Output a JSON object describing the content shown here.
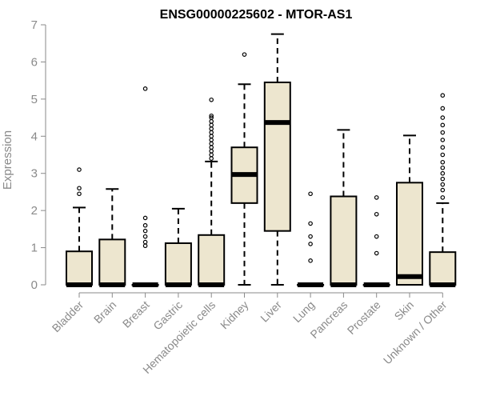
{
  "chart_data": {
    "type": "boxplot",
    "title": "ENSG00000225602 - MTOR-AS1",
    "xlabel": "",
    "ylabel": "Expression",
    "ylim": [
      0,
      7
    ],
    "yticks": [
      0,
      1,
      2,
      3,
      4,
      5,
      6,
      7
    ],
    "grid": false,
    "colors": {
      "box_fill": "#ede6cf",
      "stroke": "#000000",
      "axis": "#8a8a8a"
    },
    "categories": [
      "Bladder",
      "Brain",
      "Breast",
      "Gastric",
      "Hematopoietic cells",
      "Kidney",
      "Liver",
      "Lung",
      "Pancreas",
      "Prostate",
      "Skin",
      "Unknown / Other"
    ],
    "boxes": [
      {
        "category": "Bladder",
        "whisker_low": 0,
        "q1": 0,
        "median": 0,
        "q3": 0.9,
        "whisker_high": 2.08,
        "outliers": [
          2.45,
          2.6,
          3.1
        ]
      },
      {
        "category": "Brain",
        "whisker_low": 0,
        "q1": 0,
        "median": 0,
        "q3": 1.22,
        "whisker_high": 2.58,
        "outliers": []
      },
      {
        "category": "Breast",
        "whisker_low": 0,
        "q1": 0,
        "median": 0,
        "q3": 0,
        "whisker_high": 0,
        "outliers": [
          1.05,
          1.15,
          1.3,
          1.45,
          1.6,
          1.8,
          5.28
        ]
      },
      {
        "category": "Gastric",
        "whisker_low": 0,
        "q1": 0,
        "median": 0,
        "q3": 1.12,
        "whisker_high": 2.05,
        "outliers": []
      },
      {
        "category": "Hematopoietic cells",
        "whisker_low": 0,
        "q1": 0,
        "median": 0,
        "q3": 1.34,
        "whisker_high": 3.32,
        "outliers": [
          3.4,
          3.5,
          3.6,
          3.7,
          3.8,
          3.9,
          4.0,
          4.1,
          4.2,
          4.3,
          4.4,
          4.5,
          4.55,
          4.98
        ]
      },
      {
        "category": "Kidney",
        "whisker_low": 0,
        "q1": 2.2,
        "median": 2.97,
        "q3": 3.7,
        "whisker_high": 5.4,
        "outliers": [
          6.2
        ]
      },
      {
        "category": "Liver",
        "whisker_low": 0,
        "q1": 1.45,
        "median": 4.37,
        "q3": 5.45,
        "whisker_high": 6.75,
        "outliers": []
      },
      {
        "category": "Lung",
        "whisker_low": 0,
        "q1": 0,
        "median": 0,
        "q3": 0,
        "whisker_high": 0,
        "outliers": [
          0.65,
          1.1,
          1.3,
          1.65,
          2.45
        ]
      },
      {
        "category": "Pancreas",
        "whisker_low": 0,
        "q1": 0,
        "median": 0,
        "q3": 2.38,
        "whisker_high": 4.17,
        "outliers": []
      },
      {
        "category": "Prostate",
        "whisker_low": 0,
        "q1": 0,
        "median": 0,
        "q3": 0,
        "whisker_high": 0,
        "outliers": [
          0.85,
          1.3,
          1.9,
          2.35
        ]
      },
      {
        "category": "Skin",
        "whisker_low": 0,
        "q1": 0,
        "median": 0.22,
        "q3": 2.75,
        "whisker_high": 4.02,
        "outliers": []
      },
      {
        "category": "Unknown / Other",
        "whisker_low": 0,
        "q1": 0,
        "median": 0,
        "q3": 0.88,
        "whisker_high": 2.2,
        "outliers": [
          2.35,
          2.55,
          2.7,
          2.85,
          3.0,
          3.15,
          3.3,
          3.5,
          3.7,
          3.9,
          4.1,
          4.3,
          4.5,
          4.75,
          5.1
        ]
      }
    ]
  }
}
